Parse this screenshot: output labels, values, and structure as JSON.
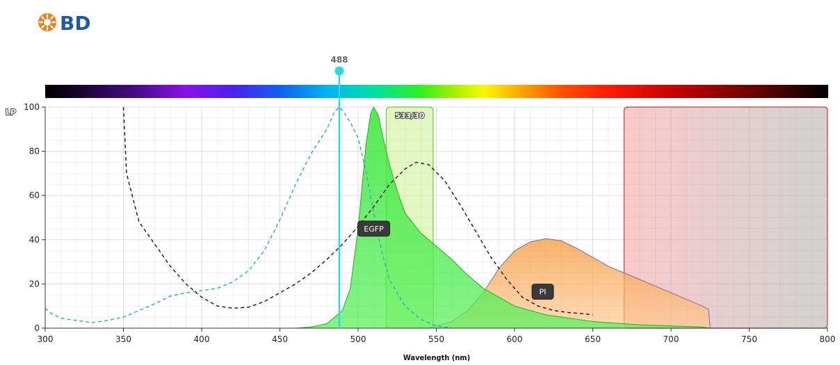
{
  "logo": {
    "text": "BD",
    "color": "#2058a4",
    "icon": "bd-sunburst-icon",
    "icon_color": "#f07f22"
  },
  "chart_data": {
    "type": "area",
    "xlabel": "Wavelength (nm)",
    "ylabel": "LP",
    "xlim": [
      300,
      800
    ],
    "ylim": [
      0,
      100
    ],
    "x_ticks": [
      300,
      350,
      400,
      450,
      500,
      550,
      600,
      650,
      700,
      750,
      800
    ],
    "y_ticks": [
      0,
      20,
      40,
      60,
      80,
      100
    ],
    "grid": true,
    "laser": {
      "label": "488",
      "wavelength": 488,
      "color": "#2fd6e6"
    },
    "filters": [
      {
        "label": "533/30",
        "range": [
          518,
          548
        ],
        "color": "#c7f08c"
      },
      {
        "label": "",
        "range": [
          670,
          800
        ],
        "color": "#ee8f8f"
      }
    ],
    "series": [
      {
        "name": "EGFP",
        "kind": "emission",
        "color": "#3ae43a",
        "x": [
          460,
          470,
          480,
          490,
          495,
          500,
          505,
          508,
          510,
          513,
          516,
          520,
          525,
          530,
          540,
          550,
          560,
          570,
          580,
          600,
          620,
          650,
          680,
          700,
          720,
          725
        ],
        "y": [
          0,
          0.5,
          2,
          8,
          18,
          45,
          83,
          97,
          100,
          96,
          86,
          74,
          62,
          52,
          43,
          37,
          31,
          24,
          18,
          10,
          6,
          3,
          1.5,
          1,
          0.5,
          0
        ]
      },
      {
        "name": "EGFP",
        "kind": "excitation",
        "color": "#2fb0bf",
        "x": [
          300,
          303,
          310,
          320,
          330,
          340,
          350,
          360,
          370,
          380,
          390,
          400,
          410,
          420,
          430,
          440,
          450,
          460,
          470,
          480,
          485,
          488,
          490,
          495,
          500,
          505,
          510,
          515,
          520,
          530,
          540,
          550,
          560
        ],
        "y": [
          9,
          7,
          4.5,
          3.5,
          2.5,
          3.5,
          5,
          8,
          11,
          14.5,
          16,
          17,
          18,
          21,
          26,
          35,
          49,
          65,
          79,
          90,
          98,
          100,
          98.5,
          93,
          86,
          71,
          52,
          35,
          22,
          10,
          4,
          1,
          0
        ]
      },
      {
        "name": "PI",
        "kind": "emission",
        "color": "#f5a14a",
        "x": [
          545,
          560,
          570,
          580,
          590,
          600,
          610,
          620,
          630,
          640,
          650,
          660,
          670,
          680,
          690,
          700,
          710,
          720,
          724,
          725
        ],
        "y": [
          0,
          3,
          8,
          16,
          27,
          35,
          39,
          40.5,
          39.5,
          36,
          32,
          28,
          25,
          22,
          19,
          16,
          13,
          10,
          8.5,
          0
        ]
      },
      {
        "name": "PI",
        "kind": "excitation",
        "color": "#222222",
        "x": [
          350,
          352,
          360,
          370,
          380,
          390,
          400,
          410,
          420,
          430,
          440,
          450,
          460,
          470,
          480,
          490,
          500,
          510,
          520,
          530,
          537,
          545,
          555,
          565,
          575,
          585,
          595,
          605,
          615,
          625,
          635,
          645,
          650
        ],
        "y": [
          100,
          70,
          48,
          38,
          28,
          20,
          14,
          10,
          9,
          9.5,
          12,
          16,
          20,
          25,
          31,
          38,
          46,
          55,
          65,
          72,
          75,
          74,
          67,
          56,
          44,
          32,
          22,
          14,
          10,
          8,
          7,
          6.5,
          6
        ]
      }
    ],
    "series_tags": [
      {
        "label": "EGFP",
        "x": 510,
        "y": 45
      },
      {
        "label": "PI",
        "x": 618,
        "y": 16.5
      }
    ]
  }
}
